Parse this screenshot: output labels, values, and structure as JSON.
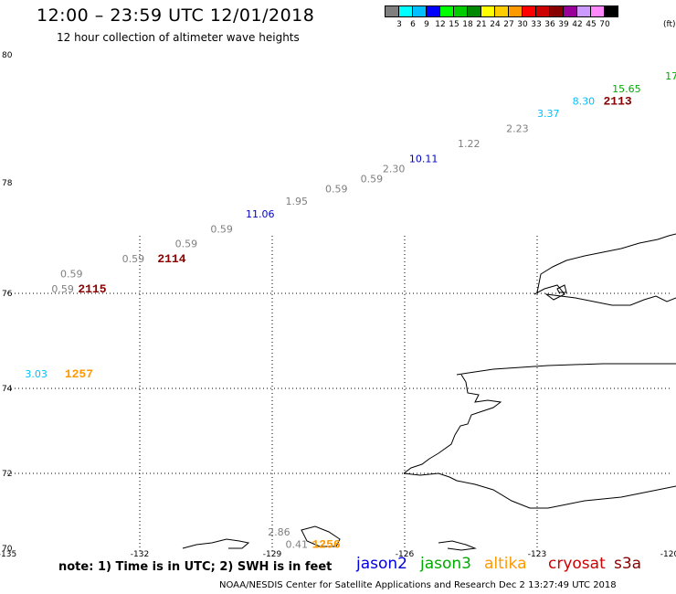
{
  "header": {
    "title": "12:00 – 23:59 UTC 12/01/2018",
    "subtitle": "12 hour collection of altimeter wave heights"
  },
  "colorbar": {
    "colors": [
      "#7f7f7f",
      "#00ffff",
      "#00bfff",
      "#0000ff",
      "#00ff00",
      "#00cc00",
      "#008800",
      "#ffff00",
      "#ffcc00",
      "#ff9900",
      "#ff0000",
      "#cc0000",
      "#880000",
      "#990099",
      "#cc99ff",
      "#ff88ff",
      "#000000"
    ],
    "labels": [
      "3",
      "6",
      "9",
      "12",
      "15",
      "18",
      "21",
      "24",
      "27",
      "30",
      "33",
      "36",
      "39",
      "42",
      "45",
      "70"
    ],
    "unit": "(ft)"
  },
  "axes": {
    "lat_labels": [
      {
        "text": "80",
        "lat": 80
      },
      {
        "text": "78",
        "lat": 78
      },
      {
        "text": "76",
        "lat": 76
      },
      {
        "text": "74",
        "lat": 74
      },
      {
        "text": "72",
        "lat": 72
      },
      {
        "text": "70",
        "lat": 70
      }
    ],
    "lon_labels": [
      {
        "text": "-135",
        "lon": -135
      },
      {
        "text": "-132",
        "lon": -132
      },
      {
        "text": "-129",
        "lon": -129
      },
      {
        "text": "-126",
        "lon": -126
      },
      {
        "text": "-123",
        "lon": -123
      },
      {
        "text": "-120",
        "lon": -120
      }
    ]
  },
  "observations": [
    {
      "text": "0.59",
      "lon": -134.0,
      "lat": 75.2,
      "color": "#7f7f7f",
      "kind": "value"
    },
    {
      "text": "0.59",
      "lon": -133.8,
      "lat": 75.5,
      "color": "#7f7f7f",
      "kind": "value"
    },
    {
      "text": "2115",
      "lon": -133.4,
      "lat": 75.2,
      "color": "#880000",
      "kind": "time"
    },
    {
      "text": "0.59",
      "lon": -132.4,
      "lat": 75.8,
      "color": "#7f7f7f",
      "kind": "value"
    },
    {
      "text": "2114",
      "lon": -131.6,
      "lat": 75.8,
      "color": "#880000",
      "kind": "time"
    },
    {
      "text": "0.59",
      "lon": -131.2,
      "lat": 76.1,
      "color": "#7f7f7f",
      "kind": "value"
    },
    {
      "text": "0.59",
      "lon": -130.4,
      "lat": 76.4,
      "color": "#7f7f7f",
      "kind": "value"
    },
    {
      "text": "11.06",
      "lon": -129.6,
      "lat": 76.7,
      "color": "#0000cc",
      "kind": "value"
    },
    {
      "text": "1.95",
      "lon": -128.7,
      "lat": 76.95,
      "color": "#7f7f7f",
      "kind": "value"
    },
    {
      "text": "0.59",
      "lon": -127.8,
      "lat": 77.2,
      "color": "#7f7f7f",
      "kind": "value"
    },
    {
      "text": "0.59",
      "lon": -127.0,
      "lat": 77.4,
      "color": "#7f7f7f",
      "kind": "value"
    },
    {
      "text": "2.30",
      "lon": -126.5,
      "lat": 77.6,
      "color": "#7f7f7f",
      "kind": "value"
    },
    {
      "text": "10.11",
      "lon": -125.9,
      "lat": 77.8,
      "color": "#0000cc",
      "kind": "value"
    },
    {
      "text": "1.22",
      "lon": -124.8,
      "lat": 78.1,
      "color": "#7f7f7f",
      "kind": "value"
    },
    {
      "text": "2.23",
      "lon": -123.7,
      "lat": 78.4,
      "color": "#7f7f7f",
      "kind": "value"
    },
    {
      "text": "3.37",
      "lon": -123.0,
      "lat": 78.7,
      "color": "#00bfff",
      "kind": "value"
    },
    {
      "text": "8.30",
      "lon": -122.2,
      "lat": 78.95,
      "color": "#00bfff",
      "kind": "value"
    },
    {
      "text": "2113",
      "lon": -121.5,
      "lat": 78.95,
      "color": "#880000",
      "kind": "time"
    },
    {
      "text": "15.65",
      "lon": -121.3,
      "lat": 79.2,
      "color": "#00aa00",
      "kind": "value"
    },
    {
      "text": "17",
      "lon": -120.1,
      "lat": 79.45,
      "color": "#00aa00",
      "kind": "value"
    },
    {
      "text": "3.03",
      "lon": -134.6,
      "lat": 73.5,
      "color": "#00bfff",
      "kind": "value"
    },
    {
      "text": "1257",
      "lon": -133.7,
      "lat": 73.5,
      "color": "#ff9900",
      "kind": "time"
    },
    {
      "text": "2.86",
      "lon": -129.1,
      "lat": 70.35,
      "color": "#7f7f7f",
      "kind": "value"
    },
    {
      "text": "0.41",
      "lon": -128.7,
      "lat": 70.1,
      "color": "#7f7f7f",
      "kind": "value"
    },
    {
      "text": "1256",
      "lon": -128.1,
      "lat": 70.1,
      "color": "#ff9900",
      "kind": "time"
    }
  ],
  "footer": {
    "note": "note: 1) Time is in UTC; 2) SWH is in feet",
    "legend": [
      {
        "text": "jason2",
        "color": "#0000dd"
      },
      {
        "text": "jason3",
        "color": "#00aa00"
      },
      {
        "text": "altika",
        "color": "#ff9900"
      },
      {
        "text": "cryosat",
        "color": "#cc0000"
      },
      {
        "text": "s3a",
        "color": "#880000"
      }
    ],
    "credit": "NOAA/NESDIS Center for Satellite Applications and Research    Dec  2 13:27:49 UTC 2018"
  }
}
